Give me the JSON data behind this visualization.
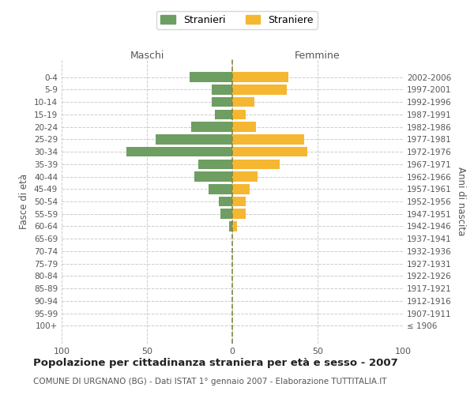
{
  "age_groups": [
    "100+",
    "95-99",
    "90-94",
    "85-89",
    "80-84",
    "75-79",
    "70-74",
    "65-69",
    "60-64",
    "55-59",
    "50-54",
    "45-49",
    "40-44",
    "35-39",
    "30-34",
    "25-29",
    "20-24",
    "15-19",
    "10-14",
    "5-9",
    "0-4"
  ],
  "birth_years": [
    "≤ 1906",
    "1907-1911",
    "1912-1916",
    "1917-1921",
    "1922-1926",
    "1927-1931",
    "1932-1936",
    "1937-1941",
    "1942-1946",
    "1947-1951",
    "1952-1956",
    "1957-1961",
    "1962-1966",
    "1967-1971",
    "1972-1976",
    "1977-1981",
    "1982-1986",
    "1987-1991",
    "1992-1996",
    "1997-2001",
    "2002-2006"
  ],
  "males": [
    0,
    0,
    0,
    0,
    0,
    0,
    0,
    0,
    2,
    7,
    8,
    14,
    22,
    20,
    62,
    45,
    24,
    10,
    12,
    12,
    25
  ],
  "females": [
    0,
    0,
    0,
    0,
    0,
    0,
    0,
    0,
    3,
    8,
    8,
    10,
    15,
    28,
    44,
    42,
    14,
    8,
    13,
    32,
    33
  ],
  "male_color": "#6e9e62",
  "female_color": "#f5b731",
  "center_line_color": "#888844",
  "grid_color": "#cccccc",
  "title": "Popolazione per cittadinanza straniera per età e sesso - 2007",
  "subtitle": "COMUNE DI URGNANO (BG) - Dati ISTAT 1° gennaio 2007 - Elaborazione TUTTITALIA.IT",
  "xlabel_left": "Maschi",
  "xlabel_right": "Femmine",
  "ylabel_left": "Fasce di età",
  "ylabel_right": "Anni di nascita",
  "legend_male": "Stranieri",
  "legend_female": "Straniere",
  "xlim": 100,
  "background_color": "#ffffff",
  "bar_height": 0.8
}
